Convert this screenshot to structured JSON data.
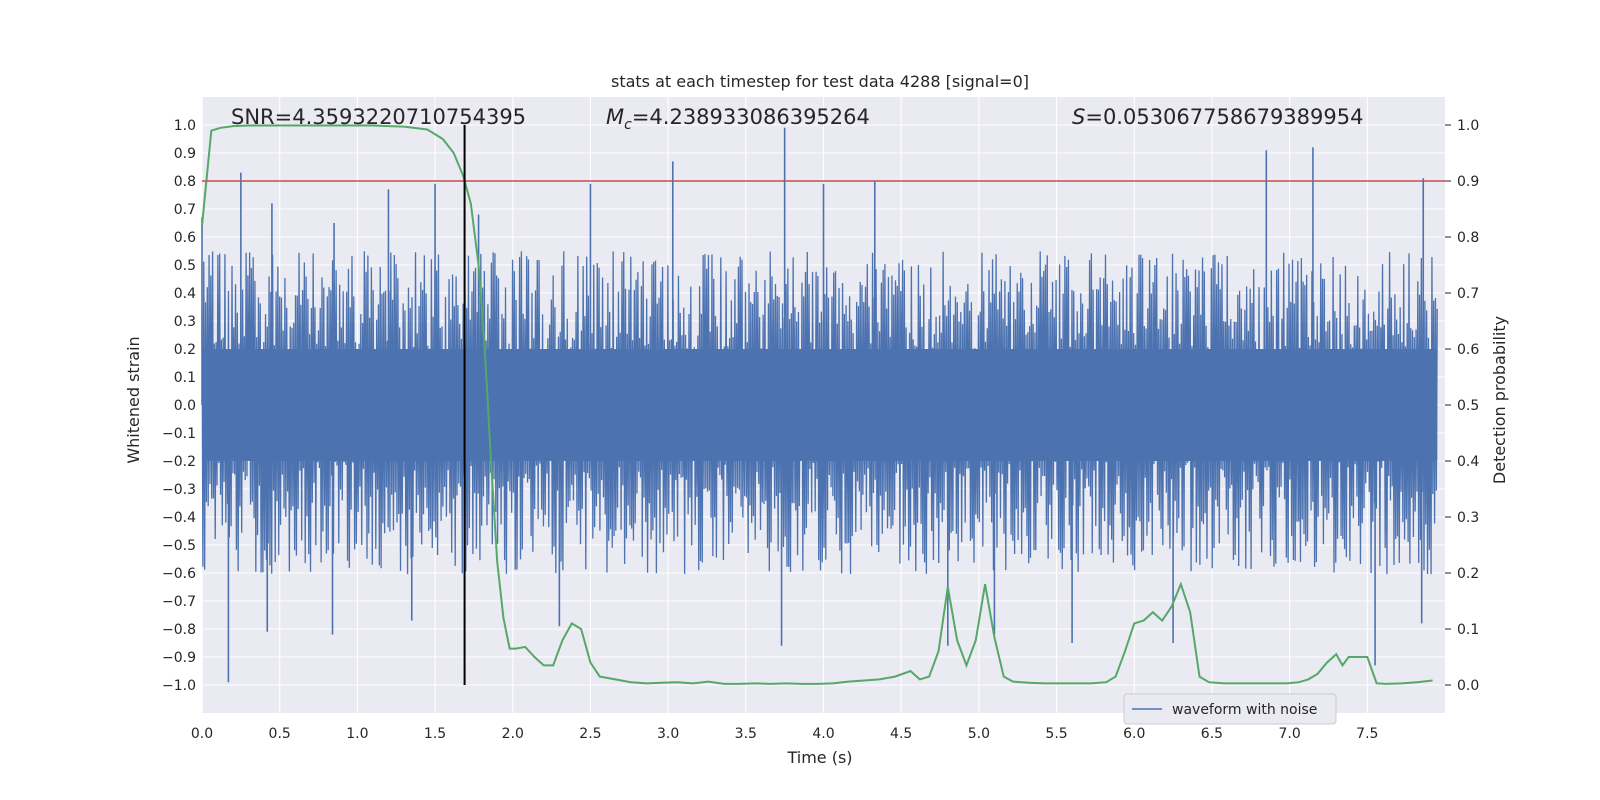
{
  "chart_data": {
    "type": "line",
    "title": "stats at each timestep for test data 4288 [signal=0]",
    "xlabel": "Time (s)",
    "ylabel_left": "Whitened strain",
    "ylabel_right": "Detection probability",
    "xlim": [
      0.0,
      8.0
    ],
    "ylim_left": [
      -1.1,
      1.1
    ],
    "ylim_right": [
      -0.05,
      1.05
    ],
    "xticks": [
      "0.0",
      "0.5",
      "1.0",
      "1.5",
      "2.0",
      "2.5",
      "3.0",
      "3.5",
      "4.0",
      "4.5",
      "5.0",
      "5.5",
      "6.0",
      "6.5",
      "7.0",
      "7.5"
    ],
    "yticks_left": [
      "1.0",
      "0.9",
      "0.8",
      "0.7",
      "0.6",
      "0.5",
      "0.4",
      "0.3",
      "0.2",
      "0.1",
      "0.0",
      "-0.1",
      "-0.2",
      "-0.3",
      "-0.4",
      "-0.5",
      "-0.6",
      "-0.7",
      "-0.8",
      "-0.9",
      "-1.0"
    ],
    "yticks_right": [
      "1.0",
      "0.9",
      "0.8",
      "0.7",
      "0.6",
      "0.5",
      "0.4",
      "0.3",
      "0.2",
      "0.1",
      "0.0"
    ],
    "grid": true,
    "background": "#eaeaf2",
    "annotations": {
      "snr_prefix": "SNR=",
      "snr_value": "4.3593220710754395",
      "mc_symbol": "M",
      "mc_subscript": "c",
      "mc_value": "=4.238933086395264",
      "s_symbol": "S",
      "s_value": "=0.053067758679389954"
    },
    "threshold": {
      "axis": "right",
      "value": 0.9,
      "color": "#c44e52"
    },
    "marker_line": {
      "x": 1.69,
      "color": "#000000"
    },
    "series": [
      {
        "name": "waveform with noise",
        "axis": "left",
        "color": "#4c72b0",
        "description_peaks_high": [
          [
            0.0,
            0.67
          ],
          [
            0.25,
            0.83
          ],
          [
            0.45,
            0.72
          ],
          [
            0.85,
            0.65
          ],
          [
            1.2,
            0.77
          ],
          [
            1.5,
            0.79
          ],
          [
            1.78,
            0.68
          ],
          [
            2.5,
            0.79
          ],
          [
            3.03,
            0.87
          ],
          [
            3.75,
            0.99
          ],
          [
            4.0,
            0.79
          ],
          [
            4.33,
            0.8
          ],
          [
            6.85,
            0.91
          ],
          [
            7.15,
            0.92
          ],
          [
            7.86,
            0.81
          ]
        ],
        "description_peaks_low": [
          [
            0.17,
            -0.99
          ],
          [
            0.42,
            -0.81
          ],
          [
            0.84,
            -0.82
          ],
          [
            1.35,
            -0.77
          ],
          [
            2.3,
            -0.79
          ],
          [
            3.73,
            -0.86
          ],
          [
            4.8,
            -0.86
          ],
          [
            5.1,
            -0.82
          ],
          [
            5.6,
            -0.85
          ],
          [
            6.25,
            -0.85
          ],
          [
            7.55,
            -0.93
          ],
          [
            7.85,
            -0.78
          ]
        ],
        "envelope_high": 0.5,
        "envelope_low": -0.55
      },
      {
        "axis": "right",
        "color": "#55a868",
        "x": [
          0.0,
          0.06,
          0.12,
          0.2,
          0.3,
          0.5,
          0.7,
          0.9,
          1.1,
          1.3,
          1.45,
          1.55,
          1.62,
          1.68,
          1.73,
          1.78,
          1.82,
          1.86,
          1.9,
          1.94,
          1.98,
          2.02,
          2.08,
          2.14,
          2.2,
          2.26,
          2.32,
          2.38,
          2.44,
          2.5,
          2.56,
          2.66,
          2.76,
          2.86,
          2.96,
          3.06,
          3.16,
          3.26,
          3.36,
          3.46,
          3.56,
          3.66,
          3.76,
          3.86,
          3.96,
          4.06,
          4.16,
          4.26,
          4.36,
          4.46,
          4.56,
          4.62,
          4.68,
          4.74,
          4.8,
          4.86,
          4.92,
          4.98,
          5.04,
          5.1,
          5.16,
          5.22,
          5.32,
          5.42,
          5.52,
          5.62,
          5.72,
          5.82,
          5.88,
          5.94,
          6.0,
          6.06,
          6.12,
          6.18,
          6.24,
          6.3,
          6.36,
          6.42,
          6.48,
          6.58,
          6.68,
          6.78,
          6.88,
          6.98,
          7.06,
          7.12,
          7.18,
          7.24,
          7.3,
          7.34,
          7.38,
          7.44,
          7.5,
          7.56,
          7.62,
          7.72,
          7.82,
          7.92
        ],
        "values": [
          0.82,
          0.99,
          0.995,
          0.998,
          0.999,
          0.999,
          0.999,
          0.999,
          0.999,
          0.997,
          0.992,
          0.975,
          0.95,
          0.91,
          0.86,
          0.75,
          0.6,
          0.4,
          0.22,
          0.12,
          0.065,
          0.065,
          0.068,
          0.05,
          0.035,
          0.035,
          0.08,
          0.11,
          0.1,
          0.04,
          0.015,
          0.01,
          0.005,
          0.003,
          0.004,
          0.005,
          0.003,
          0.006,
          0.002,
          0.002,
          0.003,
          0.002,
          0.003,
          0.002,
          0.002,
          0.003,
          0.006,
          0.008,
          0.01,
          0.015,
          0.025,
          0.01,
          0.015,
          0.06,
          0.175,
          0.08,
          0.035,
          0.08,
          0.18,
          0.085,
          0.015,
          0.006,
          0.004,
          0.003,
          0.003,
          0.003,
          0.003,
          0.005,
          0.015,
          0.06,
          0.11,
          0.115,
          0.13,
          0.115,
          0.14,
          0.18,
          0.13,
          0.015,
          0.005,
          0.003,
          0.003,
          0.003,
          0.003,
          0.003,
          0.005,
          0.01,
          0.02,
          0.04,
          0.055,
          0.035,
          0.05,
          0.05,
          0.05,
          0.003,
          0.002,
          0.003,
          0.005,
          0.008
        ]
      }
    ],
    "legend": {
      "placement": "lower-right",
      "label": "waveform with noise"
    }
  }
}
